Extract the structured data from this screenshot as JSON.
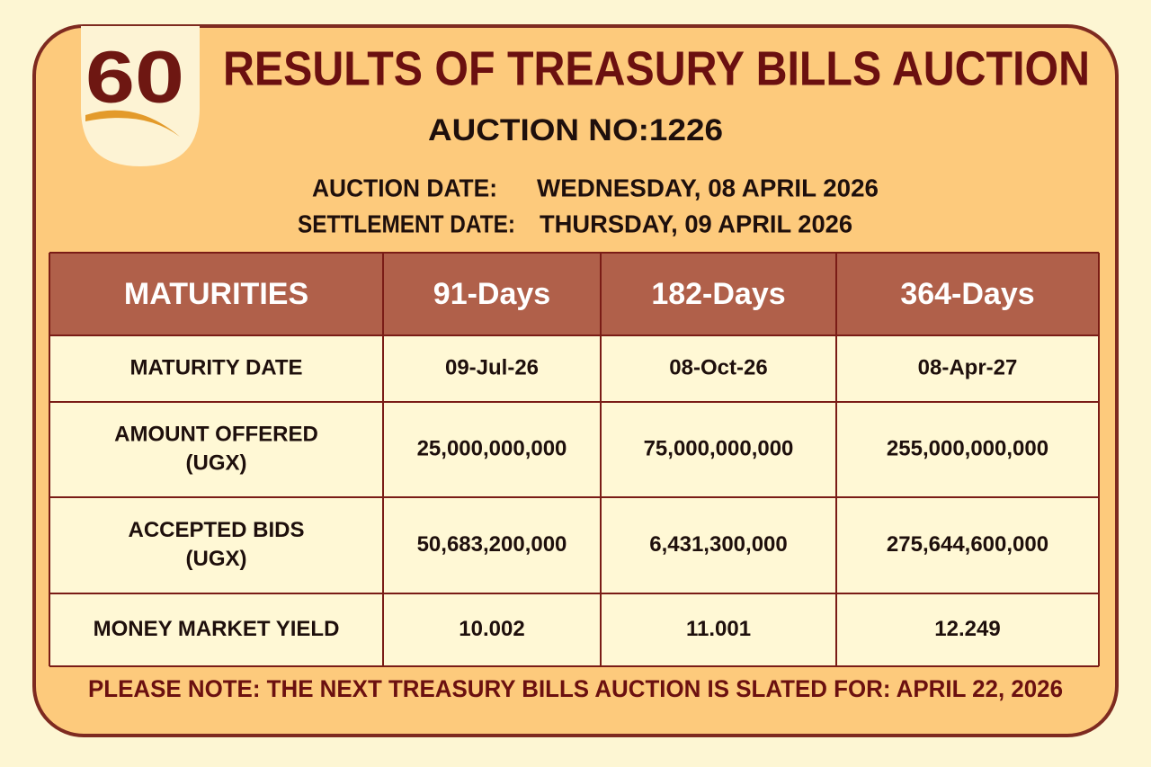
{
  "logo": {
    "text": "60"
  },
  "header": {
    "title": "RESULTS OF TREASURY BILLS AUCTION",
    "auction_no": "AUCTION NO:1226"
  },
  "dates": [
    {
      "label": "AUCTION DATE:",
      "value": "WEDNESDAY, 08 APRIL 2026"
    },
    {
      "label": "SETTLEMENT DATE:",
      "value": "THURSDAY, 09 APRIL 2026"
    }
  ],
  "table": {
    "header": [
      "MATURITIES",
      "91-Days",
      "182-Days",
      "364-Days"
    ],
    "rows": [
      {
        "label": [
          "MATURITY DATE"
        ],
        "cells": [
          "09-Jul-26",
          "08-Oct-26",
          "08-Apr-27"
        ]
      },
      {
        "label": [
          "AMOUNT OFFERED",
          "(UGX)"
        ],
        "cells": [
          "25,000,000,000",
          "75,000,000,000",
          "255,000,000,000"
        ]
      },
      {
        "label": [
          "ACCEPTED BIDS",
          "(UGX)"
        ],
        "cells": [
          "50,683,200,000",
          "6,431,300,000",
          "275,644,600,000"
        ]
      },
      {
        "label": [
          "MONEY MARKET YIELD"
        ],
        "cells": [
          "10.002",
          "11.001",
          "12.249"
        ]
      }
    ]
  },
  "footer": {
    "note": "PLEASE NOTE: THE NEXT TREASURY BILLS AUCTION IS SLATED FOR: APRIL 22, 2026"
  }
}
